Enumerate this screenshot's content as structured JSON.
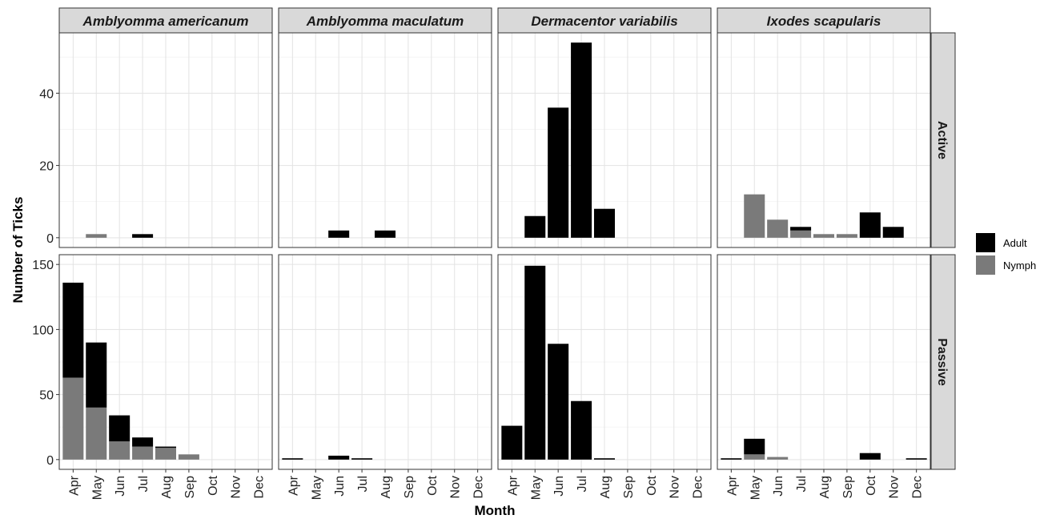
{
  "chart_data": {
    "type": "bar",
    "stacked": true,
    "facet_columns": [
      "Amblyomma americanum",
      "Amblyomma maculatum",
      "Dermacentor variabilis",
      "Ixodes scapularis"
    ],
    "facet_rows": [
      "Active",
      "Passive"
    ],
    "categories": [
      "Apr",
      "May",
      "Jun",
      "Jul",
      "Aug",
      "Sep",
      "Oct",
      "Nov",
      "Dec"
    ],
    "xlabel": "Month",
    "ylabel": "Number of Ticks",
    "legend": {
      "placement": "right",
      "entries": [
        {
          "name": "Adult",
          "color": "#000000"
        },
        {
          "name": "Nymph",
          "color": "#7a7a7a"
        }
      ]
    },
    "rows": [
      {
        "name": "Active",
        "ylim": [
          -2.7,
          56.7
        ],
        "yticks": [
          0,
          20,
          40
        ],
        "panels": [
          {
            "species": "Amblyomma americanum",
            "adult": [
              0,
              0,
              0,
              1,
              0,
              0,
              0,
              0,
              0
            ],
            "nymph": [
              0,
              1,
              0,
              0,
              0,
              0,
              0,
              0,
              0
            ]
          },
          {
            "species": "Amblyomma maculatum",
            "adult": [
              0,
              0,
              2,
              0,
              2,
              0,
              0,
              0,
              0
            ],
            "nymph": [
              0,
              0,
              0,
              0,
              0,
              0,
              0,
              0,
              0
            ]
          },
          {
            "species": "Dermacentor variabilis",
            "adult": [
              0,
              6,
              36,
              54,
              8,
              0,
              0,
              0,
              0
            ],
            "nymph": [
              0,
              0,
              0,
              0,
              0,
              0,
              0,
              0,
              0
            ]
          },
          {
            "species": "Ixodes scapularis",
            "adult": [
              0,
              0,
              0,
              1,
              0,
              0,
              7,
              3,
              0
            ],
            "nymph": [
              0,
              12,
              5,
              2,
              1,
              1,
              0,
              0,
              0
            ]
          }
        ]
      },
      {
        "name": "Passive",
        "ylim": [
          -7.5,
          157.5
        ],
        "yticks": [
          0,
          50,
          100,
          150
        ],
        "panels": [
          {
            "species": "Amblyomma americanum",
            "adult": [
              73,
              50,
              20,
              7,
              1,
              0,
              0,
              0,
              0
            ],
            "nymph": [
              63,
              40,
              14,
              10,
              9,
              4,
              0,
              0,
              0
            ]
          },
          {
            "species": "Amblyomma maculatum",
            "adult": [
              1,
              0,
              3,
              1,
              0,
              0,
              0,
              0,
              0
            ],
            "nymph": [
              0,
              0,
              0,
              0,
              0,
              0,
              0,
              0,
              0
            ]
          },
          {
            "species": "Dermacentor variabilis",
            "adult": [
              26,
              149,
              89,
              45,
              1,
              0,
              0,
              0,
              0
            ],
            "nymph": [
              0,
              0,
              0,
              0,
              0,
              0,
              0,
              0,
              0
            ]
          },
          {
            "species": "Ixodes scapularis",
            "adult": [
              1,
              12,
              0,
              0,
              0,
              0,
              5,
              0,
              1
            ],
            "nymph": [
              0,
              4,
              2,
              0,
              0,
              0,
              0,
              0,
              0
            ]
          }
        ]
      }
    ]
  }
}
